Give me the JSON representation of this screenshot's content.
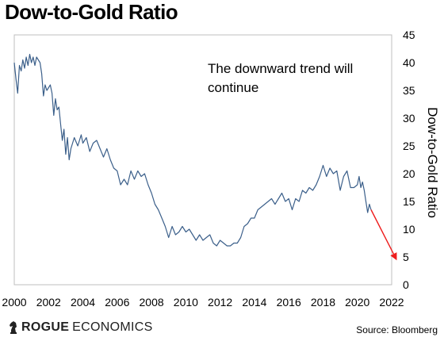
{
  "page": {
    "title": "Dow-to-Gold Ratio",
    "brand": {
      "part1": "ROGUE",
      "part2": "ECONOMICS",
      "logo_icon": "knight-chess-icon"
    },
    "source": "Source: Bloomberg"
  },
  "colors": {
    "series": "#3b5f8a",
    "arrow": "#ee1c1c",
    "frame": "#bfbfbf",
    "text": "#000000"
  },
  "chart_data": {
    "type": "line",
    "title": "Dow-to-Gold Ratio",
    "xlabel": "",
    "ylabel": "Dow-to-Gold Ratio",
    "xlim": [
      2000,
      2022
    ],
    "ylim": [
      0,
      45
    ],
    "x_ticks": [
      2000,
      2002,
      2004,
      2006,
      2008,
      2010,
      2012,
      2014,
      2016,
      2018,
      2020,
      2022
    ],
    "y_ticks": [
      0,
      5,
      10,
      15,
      20,
      25,
      30,
      35,
      40,
      45
    ],
    "y_axis_position": "right",
    "grid": false,
    "annotations": [
      {
        "text_lines": [
          "The downward trend will",
          "continue"
        ]
      }
    ],
    "projection_arrow": {
      "from": [
        2020.8,
        13.5
      ],
      "to": [
        2022.3,
        4.4
      ]
    },
    "series": [
      {
        "x": [
          2000.0,
          2000.1,
          2000.2,
          2000.3,
          2000.4,
          2000.5,
          2000.6,
          2000.7,
          2000.8,
          2000.9,
          2001.0,
          2001.1,
          2001.2,
          2001.3,
          2001.4,
          2001.5,
          2001.6,
          2001.7,
          2001.8,
          2001.9,
          2002.0,
          2002.1,
          2002.2,
          2002.3,
          2002.4,
          2002.5,
          2002.6,
          2002.7,
          2002.8,
          2002.9,
          2003.0,
          2003.1,
          2003.2,
          2003.3,
          2003.5,
          2003.7,
          2003.9,
          2004.0,
          2004.2,
          2004.4,
          2004.6,
          2004.8,
          2005.0,
          2005.2,
          2005.4,
          2005.6,
          2005.8,
          2006.0,
          2006.2,
          2006.4,
          2006.6,
          2006.8,
          2007.0,
          2007.2,
          2007.4,
          2007.6,
          2007.8,
          2008.0,
          2008.2,
          2008.4,
          2008.6,
          2008.8,
          2009.0,
          2009.2,
          2009.4,
          2009.6,
          2009.8,
          2010.0,
          2010.2,
          2010.4,
          2010.6,
          2010.8,
          2011.0,
          2011.2,
          2011.4,
          2011.6,
          2011.8,
          2012.0,
          2012.2,
          2012.4,
          2012.6,
          2012.8,
          2013.0,
          2013.2,
          2013.4,
          2013.6,
          2013.8,
          2014.0,
          2014.2,
          2014.4,
          2014.6,
          2014.8,
          2015.0,
          2015.2,
          2015.4,
          2015.6,
          2015.8,
          2016.0,
          2016.2,
          2016.4,
          2016.6,
          2016.8,
          2017.0,
          2017.2,
          2017.4,
          2017.6,
          2017.8,
          2018.0,
          2018.2,
          2018.4,
          2018.6,
          2018.8,
          2019.0,
          2019.2,
          2019.4,
          2019.6,
          2019.8,
          2020.0,
          2020.1,
          2020.2,
          2020.3,
          2020.4,
          2020.5,
          2020.6,
          2020.7,
          2020.8
        ],
        "values": [
          40.0,
          37.0,
          34.5,
          39.5,
          38.5,
          40.5,
          39.0,
          41.0,
          39.5,
          41.5,
          40.0,
          41.0,
          39.5,
          41.0,
          40.5,
          40.0,
          38.0,
          34.0,
          36.0,
          35.0,
          35.5,
          36.0,
          34.5,
          30.5,
          33.5,
          31.5,
          32.0,
          29.0,
          26.0,
          28.0,
          23.5,
          26.5,
          22.5,
          24.5,
          26.5,
          25.0,
          27.0,
          25.5,
          26.5,
          24.0,
          25.5,
          26.0,
          24.5,
          23.0,
          24.5,
          22.5,
          21.0,
          20.5,
          18.0,
          19.0,
          18.0,
          20.5,
          19.0,
          20.5,
          19.5,
          20.0,
          18.0,
          16.5,
          14.5,
          13.5,
          12.0,
          10.5,
          8.5,
          10.5,
          9.0,
          9.5,
          10.5,
          9.5,
          10.0,
          9.0,
          8.0,
          9.0,
          8.0,
          8.5,
          9.0,
          7.5,
          7.0,
          8.0,
          7.5,
          7.0,
          7.0,
          7.5,
          7.5,
          8.5,
          10.5,
          11.0,
          12.0,
          12.0,
          13.5,
          14.0,
          14.5,
          15.0,
          15.5,
          14.5,
          15.5,
          16.5,
          15.0,
          15.5,
          13.5,
          15.5,
          15.0,
          17.0,
          16.5,
          17.5,
          17.0,
          18.0,
          19.5,
          21.5,
          19.5,
          21.0,
          20.0,
          20.5,
          17.0,
          19.5,
          20.5,
          17.5,
          17.5,
          18.0,
          19.5,
          17.5,
          18.5,
          17.0,
          15.0,
          13.0,
          14.5,
          13.5
        ]
      }
    ]
  }
}
